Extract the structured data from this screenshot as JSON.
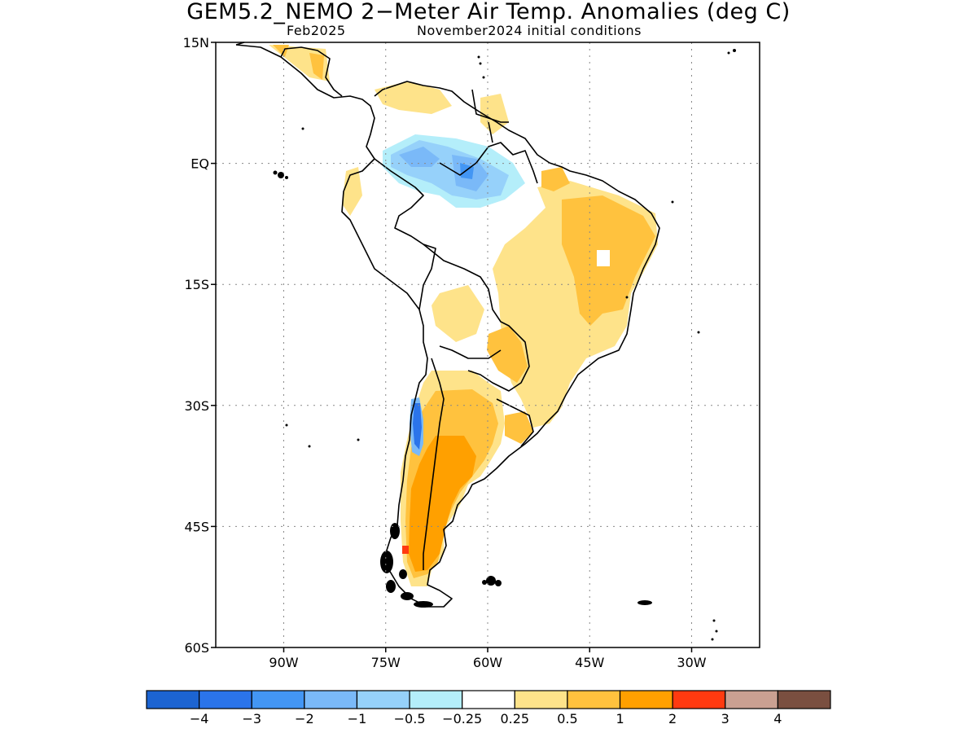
{
  "title": "GEM5.2_NEMO 2−Meter Air Temp. Anomalies (deg C)",
  "subtitle_left": "Feb2025",
  "subtitle_right": "November2024 initial conditions",
  "axes": {
    "lat_ticks": [
      {
        "label": "15N",
        "lat": 15
      },
      {
        "label": "EQ",
        "lat": 0
      },
      {
        "label": "15S",
        "lat": -15
      },
      {
        "label": "30S",
        "lat": -30
      },
      {
        "label": "45S",
        "lat": -45
      },
      {
        "label": "60S",
        "lat": -60
      }
    ],
    "lon_ticks": [
      {
        "label": "90W",
        "lon": -90
      },
      {
        "label": "75W",
        "lon": -75
      },
      {
        "label": "60W",
        "lon": -60
      },
      {
        "label": "45W",
        "lon": -45
      },
      {
        "label": "30W",
        "lon": -30
      }
    ],
    "lon_range": [
      -100,
      -20
    ],
    "lat_range": [
      -60,
      15
    ],
    "grid": "dotted"
  },
  "colorbar": {
    "colors": [
      "#1c64d2",
      "#2b74ea",
      "#4396f4",
      "#7ab9f8",
      "#96d1fa",
      "#b4eefa",
      "#ffffff",
      "#fee38a",
      "#ffc23e",
      "#ffa000",
      "#ff3a10",
      "#caa092",
      "#7a4f40"
    ],
    "labels": [
      "−4",
      "−3",
      "−2",
      "−1",
      "−0.5",
      "−0.25",
      "0.25",
      "0.5",
      "1",
      "2",
      "3",
      "4"
    ]
  },
  "anomaly_regions": [
    {
      "name": "brazil-east",
      "level": "0.5 to 1",
      "color": "#ffc23e"
    },
    {
      "name": "brazil-central",
      "level": "0.25 to 0.5",
      "color": "#fee38a"
    },
    {
      "name": "amazon-north",
      "level": "-1 to -0.5",
      "color": "#96d1fa"
    },
    {
      "name": "amazon-core",
      "level": "-2 to -1",
      "color": "#7ab9f8"
    },
    {
      "name": "argentina",
      "level": "1 to 2",
      "color": "#ffa000"
    },
    {
      "name": "central-chile",
      "level": "-4 to -2",
      "color": "#2b74ea"
    },
    {
      "name": "patagonia-spot",
      "level": "2 to 3",
      "color": "#ff3a10"
    }
  ]
}
